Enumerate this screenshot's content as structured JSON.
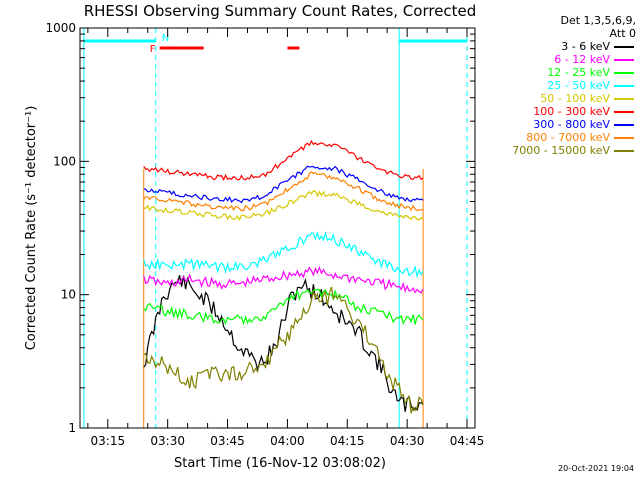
{
  "chart_data": {
    "type": "line",
    "title": "RHESSI Observing Summary Count Rates, Corrected",
    "xlabel": "Start Time (16-Nov-12 03:08:02)",
    "ylabel": "Corrected Count Rate (s⁻¹ detector⁻¹)",
    "y_scale": "log",
    "ylim": [
      1,
      1000
    ],
    "y_ticks": [
      {
        "value": 1,
        "label": "1"
      },
      {
        "value": 10,
        "label": "10"
      },
      {
        "value": 100,
        "label": "100"
      },
      {
        "value": 1000,
        "label": "1000"
      }
    ],
    "x_start": "03:08:02",
    "x_end": "04:47:00",
    "x_ticks": [
      "03:15",
      "03:30",
      "03:45",
      "04:00",
      "04:15",
      "04:30",
      "04:45"
    ],
    "data_start": "03:24:00",
    "data_end": "04:34:00",
    "legend_header": [
      "Det 1,3,5,6,9,",
      "Att 0"
    ],
    "series": [
      {
        "name": "3 - 6 keV",
        "color": "#000000",
        "x": [
          "03:24",
          "03:29",
          "03:33",
          "03:38",
          "03:43",
          "03:48",
          "03:53",
          "03:57",
          "04:00",
          "04:03",
          "04:08",
          "04:13",
          "04:18",
          "04:23",
          "04:28",
          "04:34"
        ],
        "values": [
          3,
          10,
          13,
          10,
          7,
          4,
          3,
          4,
          8,
          12,
          10,
          7,
          5,
          3,
          1.5,
          1.5
        ]
      },
      {
        "name": "6 - 12 keV",
        "color": "#ff00ff",
        "x": [
          "03:24",
          "03:30",
          "03:36",
          "03:42",
          "03:48",
          "03:54",
          "04:00",
          "04:06",
          "04:12",
          "04:18",
          "04:24",
          "04:30",
          "04:34"
        ],
        "values": [
          13,
          12,
          13,
          12,
          12,
          13,
          14,
          15,
          14,
          13,
          12,
          11,
          11
        ]
      },
      {
        "name": "12 - 25 keV",
        "color": "#00ff00",
        "x": [
          "03:24",
          "03:30",
          "03:36",
          "03:42",
          "03:48",
          "03:54",
          "04:00",
          "04:06",
          "04:12",
          "04:18",
          "04:24",
          "04:30",
          "04:34"
        ],
        "values": [
          8,
          7.5,
          7,
          6.5,
          6.5,
          7,
          9,
          11,
          10,
          8,
          7,
          6.5,
          6.5
        ]
      },
      {
        "name": "25 - 50 keV",
        "color": "#00ffff",
        "x": [
          "03:24",
          "03:30",
          "03:36",
          "03:42",
          "03:48",
          "03:54",
          "04:00",
          "04:06",
          "04:12",
          "04:18",
          "04:24",
          "04:30",
          "04:34"
        ],
        "values": [
          17,
          17,
          17,
          16,
          16,
          18,
          22,
          28,
          26,
          21,
          17,
          15,
          15
        ]
      },
      {
        "name": "50 - 100 keV",
        "color": "#d4c800",
        "x": [
          "03:24",
          "03:30",
          "03:36",
          "03:42",
          "03:48",
          "03:54",
          "04:00",
          "04:06",
          "04:12",
          "04:18",
          "04:24",
          "04:30",
          "04:34"
        ],
        "values": [
          45,
          43,
          41,
          39,
          38,
          40,
          48,
          58,
          56,
          48,
          41,
          38,
          37
        ]
      },
      {
        "name": "100 - 300 keV",
        "color": "#ff0000",
        "x": [
          "03:24",
          "03:30",
          "03:36",
          "03:42",
          "03:48",
          "03:54",
          "04:00",
          "04:06",
          "04:12",
          "04:18",
          "04:24",
          "04:30",
          "04:34"
        ],
        "values": [
          88,
          84,
          80,
          76,
          75,
          78,
          105,
          138,
          132,
          105,
          84,
          76,
          75
        ]
      },
      {
        "name": "300 - 800 keV",
        "color": "#0000ff",
        "x": [
          "03:24",
          "03:30",
          "03:36",
          "03:42",
          "03:48",
          "03:54",
          "04:00",
          "04:06",
          "04:12",
          "04:18",
          "04:24",
          "04:30",
          "04:34"
        ],
        "values": [
          62,
          58,
          55,
          52,
          51,
          54,
          72,
          92,
          88,
          72,
          58,
          52,
          51
        ]
      },
      {
        "name": "800 - 7000 keV",
        "color": "#ff8000",
        "x": [
          "03:24",
          "03:30",
          "03:36",
          "03:42",
          "03:48",
          "03:54",
          "04:00",
          "04:06",
          "04:12",
          "04:18",
          "04:24",
          "04:30",
          "04:34"
        ],
        "values": [
          54,
          51,
          48,
          45,
          44,
          47,
          62,
          80,
          76,
          62,
          50,
          45,
          44
        ]
      },
      {
        "name": "7000 - 15000 keV",
        "color": "#808000",
        "x": [
          "03:24",
          "03:30",
          "03:36",
          "03:42",
          "03:48",
          "03:54",
          "04:00",
          "04:06",
          "04:12",
          "04:18",
          "04:24",
          "04:30",
          "04:34"
        ],
        "values": [
          3.5,
          2.8,
          2.2,
          2.5,
          2.5,
          3,
          5,
          9,
          10,
          6,
          3,
          1.5,
          1.5
        ]
      }
    ],
    "flag_markers": [
      {
        "label": "F",
        "color": "#ff0000",
        "segments": [
          [
            "03:28",
            "03:39"
          ],
          [
            "04:00",
            "04:03"
          ]
        ]
      },
      {
        "label": "N",
        "color": "#00ffff",
        "segments": [
          [
            "03:09",
            "03:27"
          ],
          [
            "04:28",
            "04:45"
          ]
        ]
      }
    ],
    "night_boundaries": [
      "03:09",
      "03:27",
      "04:28",
      "04:45"
    ],
    "footer_date": "20-Oct-2021 19:04"
  }
}
